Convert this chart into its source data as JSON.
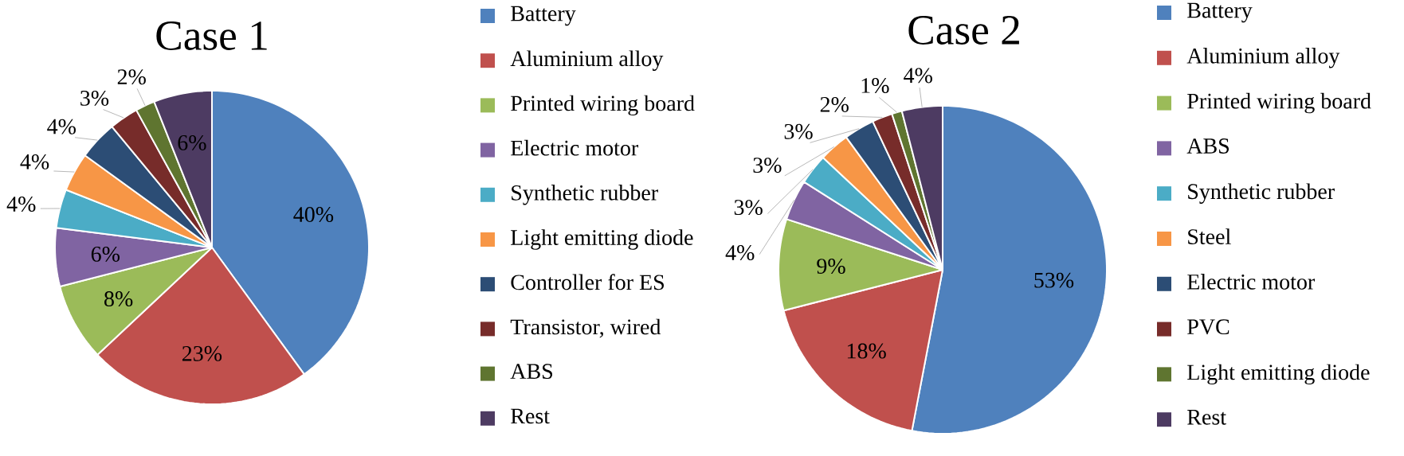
{
  "chart_data": [
    {
      "type": "pie",
      "title": "Case 1",
      "legend": "right",
      "categories": [
        "Battery",
        "Aluminium alloy",
        "Printed wiring board",
        "Electric motor",
        "Synthetic rubber",
        "Light emitting diode",
        "Controller for ES",
        "Transistor, wired",
        "ABS",
        "Rest"
      ],
      "values": [
        40,
        23,
        8,
        6,
        4,
        4,
        4,
        3,
        2,
        6
      ],
      "value_labels": [
        "40%",
        "23%",
        "8%",
        "6%",
        "4%",
        "4%",
        "4%",
        "3%",
        "2%",
        "6%"
      ],
      "colors": [
        "#4f81bd",
        "#c0504d",
        "#9bbb59",
        "#8064a2",
        "#4bacc6",
        "#f79646",
        "#2c4d75",
        "#772c2a",
        "#5f7530",
        "#4d3b62"
      ]
    },
    {
      "type": "pie",
      "title": "Case 2",
      "legend": "right",
      "categories": [
        "Battery",
        "Aluminium alloy",
        "Printed wiring board",
        "ABS",
        "Synthetic rubber",
        "Steel",
        "Electric motor",
        "PVC",
        "Light emitting diode",
        "Rest"
      ],
      "values": [
        53,
        18,
        9,
        4,
        3,
        3,
        3,
        2,
        1,
        4
      ],
      "value_labels": [
        "53%",
        "18%",
        "9%",
        "4%",
        "3%",
        "3%",
        "3%",
        "2%",
        "1%",
        "4%"
      ],
      "colors": [
        "#4f81bd",
        "#c0504d",
        "#9bbb59",
        "#8064a2",
        "#4bacc6",
        "#f79646",
        "#2c4d75",
        "#772c2a",
        "#5f7530",
        "#4d3b62"
      ]
    }
  ]
}
